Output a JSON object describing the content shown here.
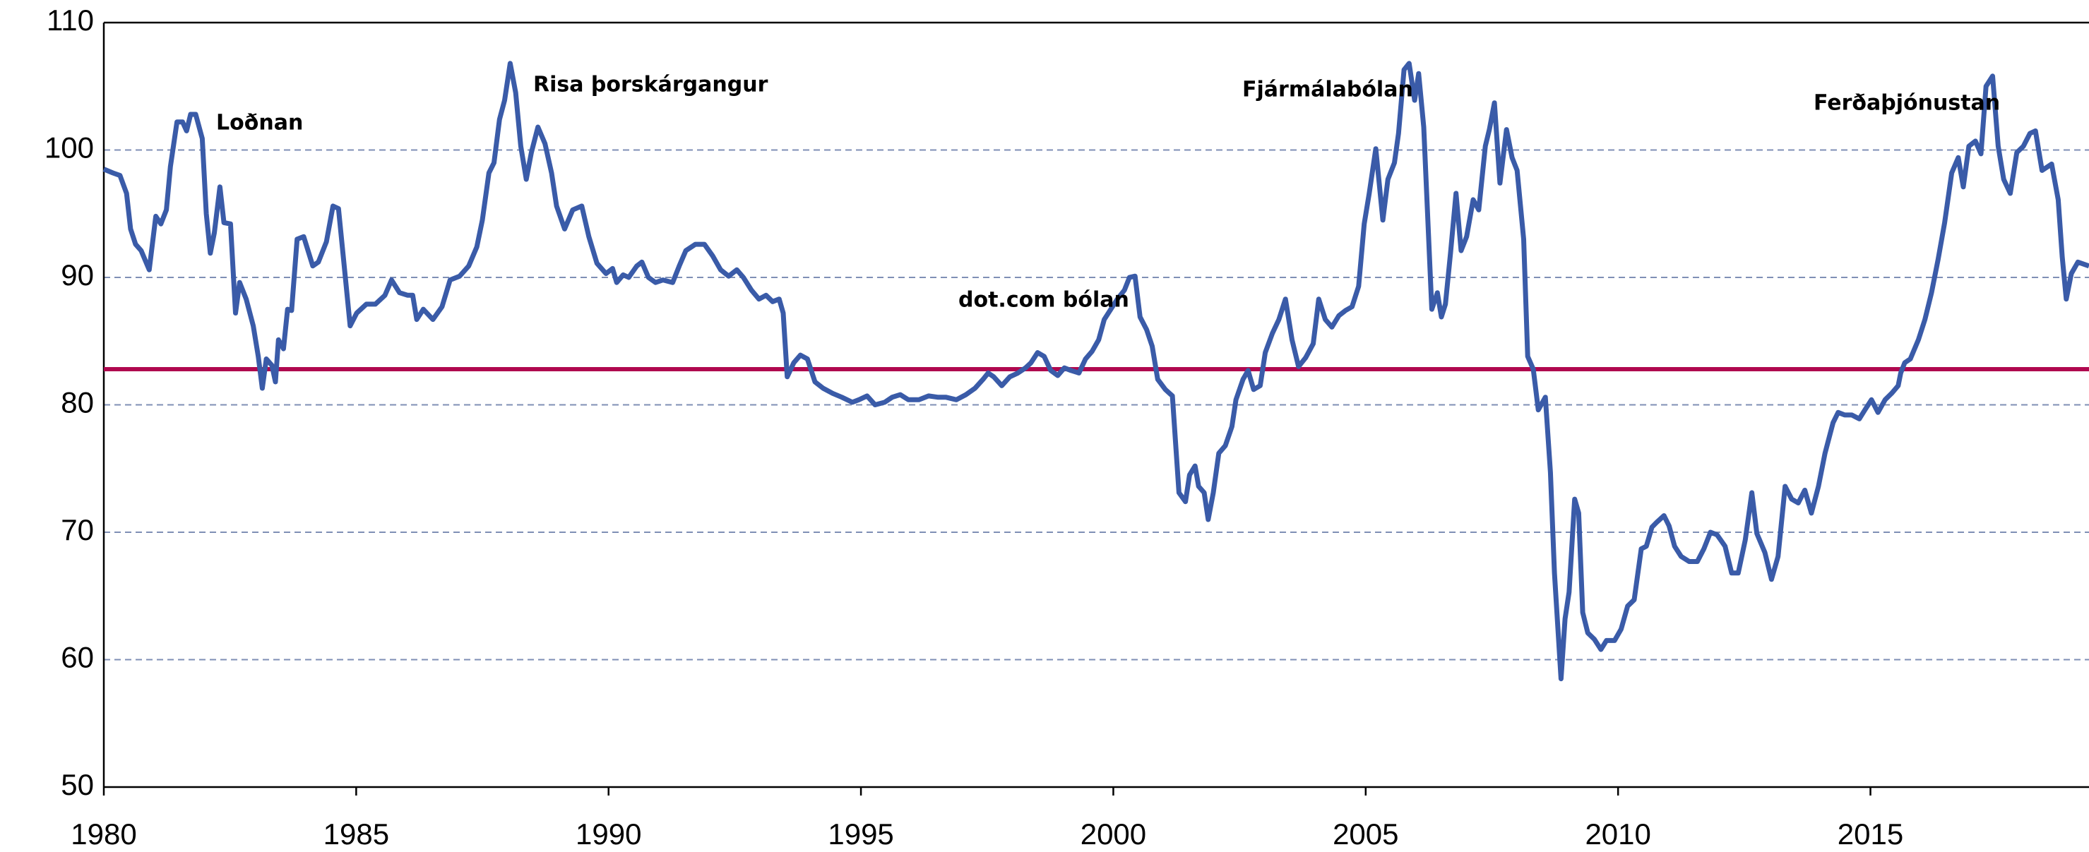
{
  "chart_data": {
    "type": "line",
    "x": [
      1980.0,
      1980.18,
      1980.32,
      1980.45,
      1980.53,
      1980.63,
      1980.74,
      1980.9,
      1981.03,
      1981.13,
      1981.24,
      1981.32,
      1981.45,
      1981.56,
      1981.64,
      1981.72,
      1981.82,
      1981.95,
      1982.03,
      1982.11,
      1982.19,
      1982.3,
      1982.38,
      1982.51,
      1982.61,
      1982.69,
      1982.82,
      1982.96,
      1983.06,
      1983.14,
      1983.22,
      1983.33,
      1983.4,
      1983.46,
      1983.56,
      1983.64,
      1983.72,
      1983.83,
      1983.96,
      1984.14,
      1984.25,
      1984.41,
      1984.54,
      1984.65,
      1984.75,
      1984.88,
      1985.01,
      1985.2,
      1985.38,
      1985.57,
      1985.7,
      1985.86,
      1986.02,
      1986.12,
      1986.2,
      1986.33,
      1986.52,
      1986.7,
      1986.86,
      1987.05,
      1987.23,
      1987.39,
      1987.5,
      1987.63,
      1987.73,
      1987.84,
      1987.94,
      1988.05,
      1988.16,
      1988.26,
      1988.37,
      1988.47,
      1988.6,
      1988.74,
      1988.87,
      1988.97,
      1989.13,
      1989.29,
      1989.47,
      1989.61,
      1989.77,
      1989.95,
      1990.08,
      1990.16,
      1990.29,
      1990.4,
      1990.56,
      1990.66,
      1990.79,
      1990.93,
      1991.08,
      1991.27,
      1991.4,
      1991.53,
      1991.72,
      1991.9,
      1992.06,
      1992.22,
      1992.38,
      1992.54,
      1992.67,
      1992.83,
      1992.98,
      1993.12,
      1993.25,
      1993.38,
      1993.46,
      1993.54,
      1993.67,
      1993.8,
      1993.94,
      1994.09,
      1994.25,
      1994.44,
      1994.62,
      1994.83,
      1994.96,
      1995.12,
      1995.28,
      1995.47,
      1995.62,
      1995.78,
      1995.94,
      1996.15,
      1996.34,
      1996.52,
      1996.68,
      1996.89,
      1997.08,
      1997.26,
      1997.42,
      1997.52,
      1997.63,
      1997.79,
      1997.95,
      1998.11,
      1998.26,
      1998.37,
      1998.5,
      1998.63,
      1998.76,
      1998.9,
      1999.03,
      1999.16,
      1999.32,
      1999.45,
      1999.58,
      1999.71,
      1999.82,
      1999.95,
      2000.08,
      2000.22,
      2000.32,
      2000.43,
      2000.53,
      2000.66,
      2000.77,
      2000.88,
      2001.03,
      2001.17,
      2001.3,
      2001.43,
      2001.51,
      2001.62,
      2001.69,
      2001.8,
      2001.88,
      2001.98,
      2002.09,
      2002.22,
      2002.35,
      2002.43,
      2002.57,
      2002.67,
      2002.78,
      2002.91,
      2003.01,
      2003.15,
      2003.28,
      2003.41,
      2003.54,
      2003.67,
      2003.81,
      2003.96,
      2004.07,
      2004.2,
      2004.33,
      2004.47,
      2004.6,
      2004.73,
      2004.86,
      2004.97,
      2005.07,
      2005.2,
      2005.34,
      2005.44,
      2005.57,
      2005.65,
      2005.76,
      2005.86,
      2005.97,
      2006.05,
      2006.15,
      2006.31,
      2006.42,
      2006.5,
      2006.58,
      2006.68,
      2006.79,
      2006.89,
      2007.0,
      2007.13,
      2007.24,
      2007.37,
      2007.45,
      2007.55,
      2007.66,
      2007.79,
      2007.9,
      2008.0,
      2008.13,
      2008.21,
      2008.32,
      2008.42,
      2008.56,
      2008.66,
      2008.74,
      2008.87,
      2008.95,
      2009.03,
      2009.14,
      2009.22,
      2009.3,
      2009.4,
      2009.53,
      2009.66,
      2009.77,
      2009.93,
      2010.06,
      2010.19,
      2010.32,
      2010.46,
      2010.56,
      2010.67,
      2010.77,
      2010.91,
      2011.01,
      2011.12,
      2011.25,
      2011.41,
      2011.57,
      2011.7,
      2011.83,
      2011.96,
      2012.12,
      2012.25,
      2012.38,
      2012.52,
      2012.65,
      2012.75,
      2012.91,
      2013.04,
      2013.17,
      2013.31,
      2013.44,
      2013.57,
      2013.7,
      2013.83,
      2013.97,
      2014.1,
      2014.26,
      2014.36,
      2014.49,
      2014.63,
      2014.78,
      2014.89,
      2015.02,
      2015.15,
      2015.29,
      2015.42,
      2015.55,
      2015.6,
      2015.68,
      2015.79,
      2015.95,
      2016.08,
      2016.21,
      2016.34,
      2016.47,
      2016.61,
      2016.74,
      2016.84,
      2016.95,
      2017.08,
      2017.19,
      2017.29,
      2017.42,
      2017.53,
      2017.64,
      2017.77,
      2017.9,
      2018.03,
      2018.16,
      2018.27,
      2018.4,
      2018.59,
      2018.72,
      2018.8,
      2018.88,
      2018.98,
      2019.11,
      2019.33
    ],
    "series": [
      {
        "color": "#3a5ba8",
        "values": [
          98.5,
          98.2,
          98,
          96.6,
          93.8,
          92.6,
          92.1,
          90.6,
          94.8,
          94.2,
          95.3,
          98.7,
          102.2,
          102.2,
          101.5,
          102.8,
          102.8,
          100.9,
          95,
          91.9,
          93.5,
          97.1,
          94.3,
          94.2,
          87.2,
          89.6,
          88.3,
          86.2,
          83.8,
          81.3,
          83.6,
          83.1,
          81.8,
          85.1,
          84.4,
          87.5,
          87.4,
          93,
          93.2,
          90.9,
          91.2,
          92.8,
          95.6,
          95.4,
          91.4,
          86.2,
          87.2,
          87.9,
          87.9,
          88.6,
          89.8,
          88.8,
          88.6,
          88.6,
          86.7,
          87.5,
          86.7,
          87.7,
          89.8,
          90.1,
          90.9,
          92.4,
          94.5,
          98.2,
          99,
          102.4,
          103.9,
          106.8,
          104.5,
          100.3,
          97.7,
          99.8,
          101.8,
          100.5,
          98.2,
          95.6,
          93.8,
          95.3,
          95.6,
          93.2,
          91.1,
          90.3,
          90.7,
          89.6,
          90.2,
          90,
          90.9,
          91.2,
          90,
          89.6,
          89.8,
          89.6,
          90.9,
          92.1,
          92.6,
          92.6,
          91.7,
          90.6,
          90.1,
          90.6,
          90,
          89,
          88.3,
          88.6,
          88.1,
          88.3,
          87.2,
          82.2,
          83.3,
          83.9,
          83.6,
          81.8,
          81.3,
          80.9,
          80.6,
          80.2,
          80.4,
          80.7,
          80,
          80.2,
          80.6,
          80.8,
          80.4,
          80.4,
          80.7,
          80.6,
          80.6,
          80.4,
          80.8,
          81.3,
          82,
          82.5,
          82.2,
          81.5,
          82.2,
          82.5,
          82.9,
          83.3,
          84.1,
          83.8,
          82.7,
          82.3,
          82.9,
          82.7,
          82.5,
          83.6,
          84.2,
          85.1,
          86.7,
          87.5,
          88.3,
          89,
          90,
          90.1,
          86.9,
          85.9,
          84.6,
          82,
          81.2,
          80.7,
          73.1,
          72.4,
          74.5,
          75.2,
          73.6,
          73.1,
          71,
          73.1,
          76.2,
          76.8,
          78.3,
          80.4,
          82,
          82.7,
          81.2,
          81.5,
          84.1,
          85.6,
          86.7,
          88.3,
          85.1,
          83,
          83.7,
          84.8,
          88.3,
          86.7,
          86.1,
          87,
          87.4,
          87.7,
          89.3,
          94.2,
          96.6,
          100.1,
          94.5,
          97.7,
          99,
          101.3,
          106.3,
          106.8,
          103.9,
          106,
          101.8,
          87.5,
          88.8,
          86.9,
          87.9,
          91.9,
          96.6,
          92.1,
          93.2,
          96.1,
          95.3,
          100.3,
          101.6,
          103.7,
          97.4,
          101.6,
          99.4,
          98.4,
          93,
          83.8,
          82.8,
          79.6,
          80.6,
          74.7,
          66.8,
          58.5,
          63.2,
          65.3,
          72.6,
          71.5,
          63.7,
          62.1,
          61.6,
          60.8,
          61.5,
          61.5,
          62.4,
          64.2,
          64.7,
          68.7,
          68.9,
          70.4,
          70.8,
          71.3,
          70.5,
          68.9,
          68.1,
          67.7,
          67.7,
          68.7,
          70,
          69.8,
          68.9,
          66.8,
          66.8,
          69.4,
          73.1,
          69.9,
          68.4,
          66.3,
          68.1,
          73.6,
          72.6,
          72.3,
          73.3,
          71.5,
          73.6,
          76.2,
          78.6,
          79.4,
          79.2,
          79.2,
          78.9,
          79.6,
          80.4,
          79.4,
          80.4,
          80.9,
          81.5,
          82.5,
          83.3,
          83.6,
          85.1,
          86.7,
          88.8,
          91.4,
          94.3,
          98.2,
          99.4,
          97.1,
          100.3,
          100.7,
          99.7,
          105,
          105.8,
          100.3,
          97.7,
          96.6,
          99.8,
          100.3,
          101.3,
          101.5,
          98.4,
          98.9,
          96.1,
          91.6,
          88.3,
          90.3,
          91.2,
          90.9
        ]
      }
    ],
    "reference_line": {
      "value": 82.8,
      "color": "#b0084f"
    },
    "annotations": [
      "Loðnan",
      "Risa þorskárgangur",
      "dot.com bólan",
      "Fjármálabólan",
      "Ferðaþjónustan"
    ],
    "xlim": [
      1980,
      2019.33
    ],
    "xticks": [
      1980,
      1985,
      1990,
      1995,
      2000,
      2005,
      2010,
      2015
    ],
    "ylim": [
      50,
      110
    ],
    "yticks": [
      50,
      60,
      70,
      80,
      90,
      100,
      110
    ],
    "grid": true
  }
}
